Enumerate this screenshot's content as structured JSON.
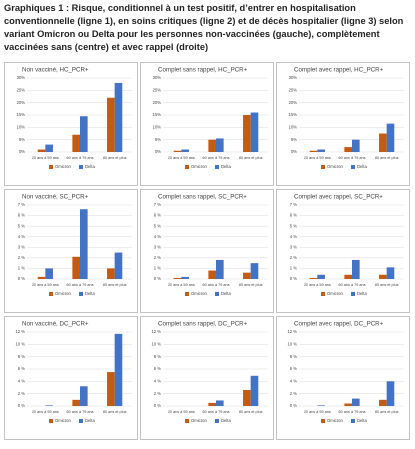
{
  "title": "Graphiques 1 : Risque, conditionnel à un test positif, d’entrer en hospitalisation conventionnelle (ligne 1), en soins critiques (ligne 2) et de décès hospitalier (ligne 3) selon variant Omicron ou Delta pour les personnes non-vaccinées (gauche), complètement vaccinées sans (centre) et avec rappel (droite)",
  "chart_data": [
    {
      "type": "bar",
      "title": "Non vacciné, HC_PCR+",
      "categories": [
        "20 ans à 59 ans",
        "60 ans à 79 ans",
        "80 ans et plus"
      ],
      "series": [
        {
          "name": "Omicron",
          "color": "#c55a11",
          "values": [
            1,
            7,
            22
          ]
        },
        {
          "name": "Delta",
          "color": "#4472c4",
          "values": [
            3,
            14.5,
            28
          ]
        }
      ],
      "ylim": [
        0,
        30
      ],
      "yticks": [
        {
          "value": 0,
          "label": "0%"
        },
        {
          "value": 5,
          "label": "5%"
        },
        {
          "value": 10,
          "label": "10%"
        },
        {
          "value": 15,
          "label": "15%"
        },
        {
          "value": 20,
          "label": "20%"
        },
        {
          "value": 25,
          "label": "25%"
        },
        {
          "value": 30,
          "label": "30%"
        }
      ],
      "grid": true
    },
    {
      "type": "bar",
      "title": "Complet sans rappel, HC_PCR+",
      "categories": [
        "20 ans à 59 ans",
        "60 ans à 79 ans",
        "80 ans et plus"
      ],
      "series": [
        {
          "name": "Omicron",
          "color": "#c55a11",
          "values": [
            0.5,
            5,
            15
          ]
        },
        {
          "name": "Delta",
          "color": "#4472c4",
          "values": [
            1,
            5.5,
            16
          ]
        }
      ],
      "ylim": [
        0,
        30
      ],
      "yticks": [
        {
          "value": 0,
          "label": "0%"
        },
        {
          "value": 5,
          "label": "5%"
        },
        {
          "value": 10,
          "label": "10%"
        },
        {
          "value": 15,
          "label": "15%"
        },
        {
          "value": 20,
          "label": "20%"
        },
        {
          "value": 25,
          "label": "25%"
        },
        {
          "value": 30,
          "label": "30%"
        }
      ],
      "grid": true
    },
    {
      "type": "bar",
      "title": "Complet avec rappel, HC_PCR+",
      "categories": [
        "20 ans à 59 ans",
        "60 ans à 79 ans",
        "80 ans et plus"
      ],
      "series": [
        {
          "name": "Omicron",
          "color": "#c55a11",
          "values": [
            0.5,
            2,
            7.5
          ]
        },
        {
          "name": "Delta",
          "color": "#4472c4",
          "values": [
            1,
            5,
            11.5
          ]
        }
      ],
      "ylim": [
        0,
        30
      ],
      "yticks": [
        {
          "value": 0,
          "label": "0%"
        },
        {
          "value": 5,
          "label": "5%"
        },
        {
          "value": 10,
          "label": "10%"
        },
        {
          "value": 15,
          "label": "15%"
        },
        {
          "value": 20,
          "label": "20%"
        },
        {
          "value": 25,
          "label": "25%"
        },
        {
          "value": 30,
          "label": "30%"
        }
      ],
      "grid": true
    },
    {
      "type": "bar",
      "title": "Non vacciné, SC_PCR+",
      "categories": [
        "20 ans à 59 ans",
        "60 ans à 79 ans",
        "80 ans et plus"
      ],
      "series": [
        {
          "name": "Omicron",
          "color": "#c55a11",
          "values": [
            0.2,
            2.1,
            1
          ]
        },
        {
          "name": "Delta",
          "color": "#4472c4",
          "values": [
            1,
            6.6,
            2.5
          ]
        }
      ],
      "ylim": [
        0,
        7
      ],
      "yticks": [
        {
          "value": 0,
          "label": "0 %"
        },
        {
          "value": 1,
          "label": "1 %"
        },
        {
          "value": 2,
          "label": "2 %"
        },
        {
          "value": 3,
          "label": "3 %"
        },
        {
          "value": 4,
          "label": "4 %"
        },
        {
          "value": 5,
          "label": "5 %"
        },
        {
          "value": 6,
          "label": "6 %"
        },
        {
          "value": 7,
          "label": "7 %"
        }
      ],
      "grid": true
    },
    {
      "type": "bar",
      "title": "Complet sans rappel, SC_PCR+",
      "categories": [
        "20 ans à 59 ans",
        "60 ans à 79 ans",
        "80 ans et plus"
      ],
      "series": [
        {
          "name": "Omicron",
          "color": "#c55a11",
          "values": [
            0.1,
            0.8,
            0.6
          ]
        },
        {
          "name": "Delta",
          "color": "#4472c4",
          "values": [
            0.2,
            1.8,
            1.5
          ]
        }
      ],
      "ylim": [
        0,
        7
      ],
      "yticks": [
        {
          "value": 0,
          "label": "0 %"
        },
        {
          "value": 1,
          "label": "1 %"
        },
        {
          "value": 2,
          "label": "2 %"
        },
        {
          "value": 3,
          "label": "3 %"
        },
        {
          "value": 4,
          "label": "4 %"
        },
        {
          "value": 5,
          "label": "5 %"
        },
        {
          "value": 6,
          "label": "6 %"
        },
        {
          "value": 7,
          "label": "7 %"
        }
      ],
      "grid": true
    },
    {
      "type": "bar",
      "title": "Complet avec rappel, SC_PCR+",
      "categories": [
        "20 ans à 59 ans",
        "60 ans à 79 ans",
        "80 ans et plus"
      ],
      "series": [
        {
          "name": "Omicron",
          "color": "#c55a11",
          "values": [
            0.1,
            0.4,
            0.4
          ]
        },
        {
          "name": "Delta",
          "color": "#4472c4",
          "values": [
            0.4,
            1.8,
            1.1
          ]
        }
      ],
      "ylim": [
        0,
        7
      ],
      "yticks": [
        {
          "value": 0,
          "label": "0 %"
        },
        {
          "value": 1,
          "label": "1 %"
        },
        {
          "value": 2,
          "label": "2 %"
        },
        {
          "value": 3,
          "label": "3 %"
        },
        {
          "value": 4,
          "label": "4 %"
        },
        {
          "value": 5,
          "label": "5 %"
        },
        {
          "value": 6,
          "label": "6 %"
        },
        {
          "value": 7,
          "label": "7 %"
        }
      ],
      "grid": true
    },
    {
      "type": "bar",
      "title": "Non vacciné, DC_PCR+",
      "categories": [
        "20 ans à 59 ans",
        "60 ans à 79 ans",
        "80 ans et plus"
      ],
      "series": [
        {
          "name": "Omicron",
          "color": "#c55a11",
          "values": [
            0,
            1,
            5.5
          ]
        },
        {
          "name": "Delta",
          "color": "#4472c4",
          "values": [
            0.1,
            3.2,
            11.7
          ]
        }
      ],
      "ylim": [
        0,
        12
      ],
      "yticks": [
        {
          "value": 0,
          "label": "0 %"
        },
        {
          "value": 2,
          "label": "2 %"
        },
        {
          "value": 4,
          "label": "4 %"
        },
        {
          "value": 6,
          "label": "6 %"
        },
        {
          "value": 8,
          "label": "8 %"
        },
        {
          "value": 10,
          "label": "10 %"
        },
        {
          "value": 12,
          "label": "12 %"
        }
      ],
      "grid": true
    },
    {
      "type": "bar",
      "title": "Complet sans rappel, DC_PCR+",
      "categories": [
        "20 ans à 59 ans",
        "60 ans à 79 ans",
        "80 ans et plus"
      ],
      "series": [
        {
          "name": "Omicron",
          "color": "#c55a11",
          "values": [
            0,
            0.5,
            2.6
          ]
        },
        {
          "name": "Delta",
          "color": "#4472c4",
          "values": [
            0,
            0.9,
            4.9
          ]
        }
      ],
      "ylim": [
        0,
        12
      ],
      "yticks": [
        {
          "value": 0,
          "label": "0 %"
        },
        {
          "value": 2,
          "label": "2 %"
        },
        {
          "value": 4,
          "label": "4 %"
        },
        {
          "value": 6,
          "label": "6 %"
        },
        {
          "value": 8,
          "label": "8 %"
        },
        {
          "value": 10,
          "label": "10 %"
        },
        {
          "value": 12,
          "label": "12 %"
        }
      ],
      "grid": true
    },
    {
      "type": "bar",
      "title": "Complet avec rappel, DC_PCR+",
      "categories": [
        "20 ans à 59 ans",
        "60 ans à 79 ans",
        "80 ans et plus"
      ],
      "series": [
        {
          "name": "Omicron",
          "color": "#c55a11",
          "values": [
            0,
            0.4,
            1
          ]
        },
        {
          "name": "Delta",
          "color": "#4472c4",
          "values": [
            0.1,
            1.2,
            4
          ]
        }
      ],
      "ylim": [
        0,
        12
      ],
      "yticks": [
        {
          "value": 0,
          "label": "0 %"
        },
        {
          "value": 2,
          "label": "2 %"
        },
        {
          "value": 4,
          "label": "4 %"
        },
        {
          "value": 6,
          "label": "6 %"
        },
        {
          "value": 8,
          "label": "8 %"
        },
        {
          "value": 10,
          "label": "10 %"
        },
        {
          "value": 12,
          "label": "12 %"
        }
      ],
      "grid": true
    }
  ]
}
